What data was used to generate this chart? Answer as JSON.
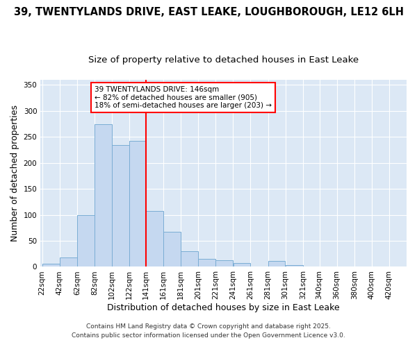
{
  "title_line1": "39, TWENTYLANDS DRIVE, EAST LEAKE, LOUGHBOROUGH, LE12 6LH",
  "title_line2": "Size of property relative to detached houses in East Leake",
  "xlabel": "Distribution of detached houses by size in East Leake",
  "ylabel": "Number of detached properties",
  "bin_labels": [
    "22sqm",
    "42sqm",
    "62sqm",
    "82sqm",
    "102sqm",
    "122sqm",
    "141sqm",
    "161sqm",
    "181sqm",
    "201sqm",
    "221sqm",
    "241sqm",
    "261sqm",
    "281sqm",
    "301sqm",
    "321sqm",
    "340sqm",
    "360sqm",
    "380sqm",
    "400sqm",
    "420sqm"
  ],
  "bin_edges": [
    22,
    42,
    62,
    82,
    102,
    122,
    141,
    161,
    181,
    201,
    221,
    241,
    261,
    281,
    301,
    321,
    340,
    360,
    380,
    400,
    420
  ],
  "bar_heights": [
    6,
    18,
    100,
    275,
    235,
    242,
    107,
    67,
    30,
    15,
    13,
    7,
    0,
    11,
    3,
    1,
    0,
    0,
    0,
    1,
    0
  ],
  "bar_color": "#c5d8f0",
  "bar_edge_color": "#7aadd4",
  "vline_x": 141,
  "vline_color": "red",
  "annotation_text": "39 TWENTYLANDS DRIVE: 146sqm\n← 82% of detached houses are smaller (905)\n18% of semi-detached houses are larger (203) →",
  "annotation_box_color": "white",
  "annotation_box_edge": "red",
  "ylim": [
    0,
    360
  ],
  "yticks": [
    0,
    50,
    100,
    150,
    200,
    250,
    300,
    350
  ],
  "fig_bg_color": "#ffffff",
  "plot_bg_color": "#dce8f5",
  "footer_line1": "Contains HM Land Registry data © Crown copyright and database right 2025.",
  "footer_line2": "Contains public sector information licensed under the Open Government Licence v3.0.",
  "title_fontsize": 10.5,
  "subtitle_fontsize": 9.5,
  "axis_label_fontsize": 9,
  "tick_fontsize": 7.5,
  "annotation_fontsize": 7.5,
  "footer_fontsize": 6.5
}
